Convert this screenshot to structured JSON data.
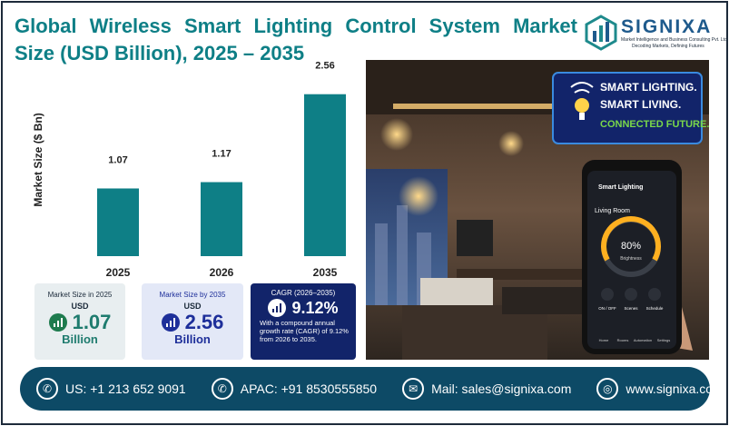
{
  "title": "Global Wireless Smart Lighting Control System Market Size (USD Billion), 2025 – 2035",
  "brand": {
    "name": "SIGNIXA",
    "tagline": "Market Intelligence and Business Consulting Pvt. Ltd.",
    "slogan": "Decoding Markets, Defining Futures",
    "color": "#1e5a8c"
  },
  "chart_data": {
    "type": "bar",
    "categories": [
      "2025",
      "2026",
      "2035"
    ],
    "values": [
      1.07,
      1.17,
      2.56
    ],
    "data_labels": [
      "1.07",
      "1.17",
      "2.56"
    ],
    "ylabel": "Market Size ($ Bn)",
    "xlabel": "",
    "ylim": [
      0,
      2.8
    ],
    "bar_color": "#0e7f86",
    "grid": false
  },
  "cards": [
    {
      "label": "Market Size in 2025",
      "sub": "USD",
      "value": "1.07",
      "unit": "Billion"
    },
    {
      "label": "Market Size by 2035",
      "sub": "USD",
      "value": "2.56",
      "unit": "Billion"
    },
    {
      "label": "CAGR (2026–2035)",
      "value": "9.12%",
      "desc": "With a compound annual growth rate (CAGR) of 9.12% from 2026 to 2035."
    }
  ],
  "promo": {
    "line1": "SMART LIGHTING.",
    "line2": "SMART LIVING.",
    "line3": "CONNECTED FUTURE."
  },
  "phone": {
    "title": "Smart Lighting",
    "room": "Living Room",
    "brightness": "80%",
    "brightness_label": "Brightness",
    "buttons": [
      "ON / OFF",
      "Scenes",
      "Schedule"
    ],
    "nav": [
      "Home",
      "Rooms",
      "Automation",
      "Settings"
    ]
  },
  "footer": {
    "us": "US: +1 213 652 9091",
    "apac": "APAC: +91 8530555850",
    "mail": "Mail: sales@signixa.com",
    "web": "www.signixa.com"
  }
}
